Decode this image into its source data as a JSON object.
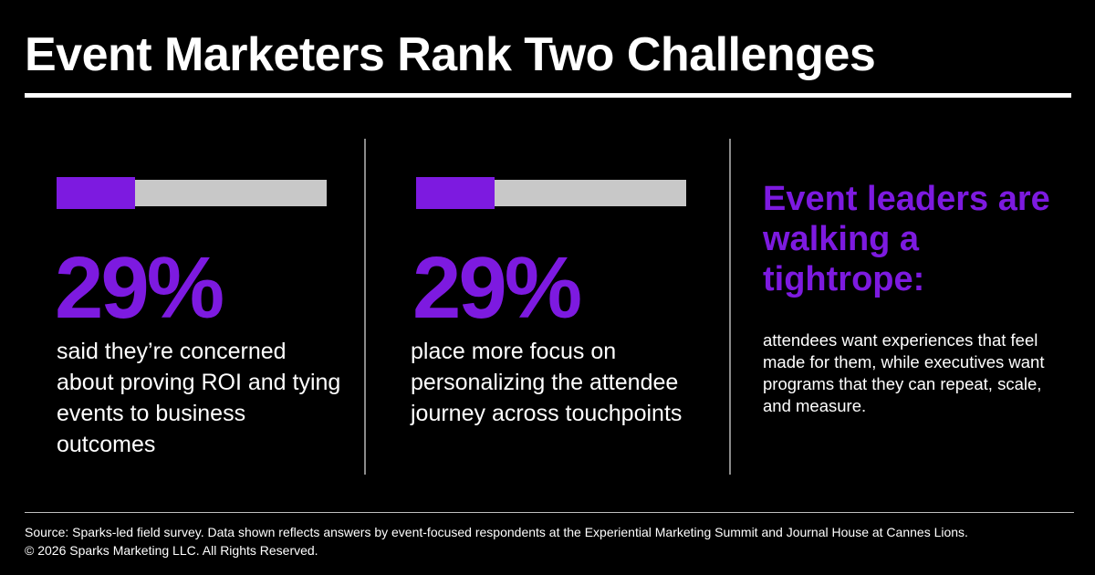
{
  "title": "Event Marketers Rank Two Challenges",
  "colors": {
    "accent": "#7d1ae0",
    "track": "#c8c8c8",
    "background": "#000000",
    "text": "#ffffff"
  },
  "stats": [
    {
      "value": "29%",
      "progress_fraction": 0.29,
      "description": "said they’re concerned about proving ROI and tying events to business outcomes"
    },
    {
      "value": "29%",
      "progress_fraction": 0.29,
      "description": "place more focus on personalizing the attendee journey across touchpoints"
    }
  ],
  "insight": {
    "headline": "Event leaders are walking a tightrope:",
    "body": "attendees want experiences that feel made for them, while executives want programs that they can repeat, scale, and measure."
  },
  "footer": {
    "source": "Source: Sparks-led field survey. Data shown reflects answers by event-focused respondents at the Experiential Marketing Summit and Journal House at Cannes Lions.",
    "copyright": "© 2026 Sparks Marketing LLC. All Rights Reserved."
  }
}
